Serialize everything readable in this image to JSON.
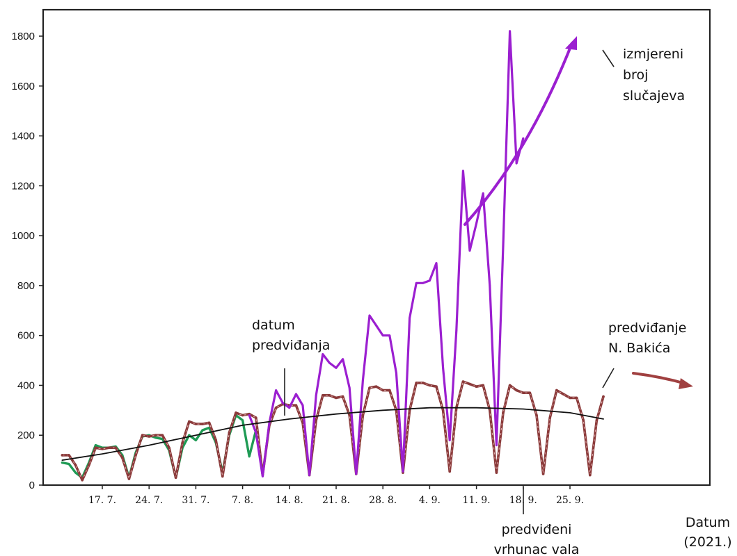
{
  "chart_data": {
    "type": "line",
    "x_unit": "date",
    "xlabel_lines": [
      "Datum",
      "(2021.)"
    ],
    "ylim": [
      0,
      1900
    ],
    "yticks": [
      0,
      200,
      400,
      600,
      800,
      1000,
      1200,
      1400,
      1600,
      1800
    ],
    "xticks": [
      {
        "x": "2021-07-17",
        "label": "17. 7."
      },
      {
        "x": "2021-07-24",
        "label": "24. 7."
      },
      {
        "x": "2021-07-31",
        "label": "31. 7."
      },
      {
        "x": "2021-08-07",
        "label": "7. 8."
      },
      {
        "x": "2021-08-14",
        "label": "14. 8."
      },
      {
        "x": "2021-08-21",
        "label": "21. 8."
      },
      {
        "x": "2021-08-28",
        "label": "28. 8."
      },
      {
        "x": "2021-09-04",
        "label": "4. 9."
      },
      {
        "x": "2021-09-11",
        "label": "11. 9."
      },
      {
        "x": "2021-09-18",
        "label": "18. 9."
      },
      {
        "x": "2021-09-25",
        "label": "25. 9."
      }
    ],
    "series": [
      {
        "name": "izmjereni broj slučajeva",
        "color": "#9b1fd0",
        "points": [
          [
            "2021-08-08",
            280
          ],
          [
            "2021-08-09",
            210
          ],
          [
            "2021-08-10",
            35
          ],
          [
            "2021-08-11",
            250
          ],
          [
            "2021-08-12",
            380
          ],
          [
            "2021-08-13",
            330
          ],
          [
            "2021-08-14",
            310
          ],
          [
            "2021-08-15",
            365
          ],
          [
            "2021-08-16",
            320
          ],
          [
            "2021-08-17",
            40
          ],
          [
            "2021-08-18",
            360
          ],
          [
            "2021-08-19",
            525
          ],
          [
            "2021-08-20",
            490
          ],
          [
            "2021-08-21",
            470
          ],
          [
            "2021-08-22",
            505
          ],
          [
            "2021-08-23",
            390
          ],
          [
            "2021-08-24",
            45
          ],
          [
            "2021-08-25",
            420
          ],
          [
            "2021-08-26",
            680
          ],
          [
            "2021-08-27",
            640
          ],
          [
            "2021-08-28",
            600
          ],
          [
            "2021-08-29",
            600
          ],
          [
            "2021-08-30",
            450
          ],
          [
            "2021-08-31",
            55
          ],
          [
            "2021-09-01",
            670
          ],
          [
            "2021-09-02",
            810
          ],
          [
            "2021-09-03",
            810
          ],
          [
            "2021-09-04",
            820
          ],
          [
            "2021-09-05",
            890
          ],
          [
            "2021-09-06",
            470
          ],
          [
            "2021-09-07",
            180
          ],
          [
            "2021-09-08",
            620
          ],
          [
            "2021-09-09",
            1260
          ],
          [
            "2021-09-10",
            940
          ],
          [
            "2021-09-11",
            1050
          ],
          [
            "2021-09-12",
            1170
          ],
          [
            "2021-09-13",
            800
          ],
          [
            "2021-09-14",
            160
          ],
          [
            "2021-09-15",
            960
          ],
          [
            "2021-09-16",
            1820
          ],
          [
            "2021-09-17",
            1290
          ],
          [
            "2021-09-18",
            1390
          ]
        ]
      },
      {
        "name": "predviđanje N. Bakića",
        "color": "#8b3a3a",
        "points": [
          [
            "2021-07-11",
            120
          ],
          [
            "2021-07-12",
            120
          ],
          [
            "2021-07-13",
            80
          ],
          [
            "2021-07-14",
            20
          ],
          [
            "2021-07-15",
            80
          ],
          [
            "2021-07-16",
            150
          ],
          [
            "2021-07-17",
            145
          ],
          [
            "2021-07-18",
            150
          ],
          [
            "2021-07-19",
            150
          ],
          [
            "2021-07-20",
            110
          ],
          [
            "2021-07-21",
            25
          ],
          [
            "2021-07-22",
            120
          ],
          [
            "2021-07-23",
            200
          ],
          [
            "2021-07-24",
            195
          ],
          [
            "2021-07-25",
            200
          ],
          [
            "2021-07-26",
            200
          ],
          [
            "2021-07-27",
            150
          ],
          [
            "2021-07-28",
            30
          ],
          [
            "2021-07-29",
            170
          ],
          [
            "2021-07-30",
            255
          ],
          [
            "2021-07-31",
            245
          ],
          [
            "2021-08-01",
            245
          ],
          [
            "2021-08-02",
            250
          ],
          [
            "2021-08-03",
            180
          ],
          [
            "2021-08-04",
            35
          ],
          [
            "2021-08-05",
            210
          ],
          [
            "2021-08-06",
            290
          ],
          [
            "2021-08-07",
            280
          ],
          [
            "2021-08-08",
            285
          ],
          [
            "2021-08-09",
            270
          ],
          [
            "2021-08-10",
            40
          ],
          [
            "2021-08-11",
            240
          ],
          [
            "2021-08-12",
            310
          ],
          [
            "2021-08-13",
            325
          ],
          [
            "2021-08-14",
            320
          ],
          [
            "2021-08-15",
            320
          ],
          [
            "2021-08-16",
            250
          ],
          [
            "2021-08-17",
            40
          ],
          [
            "2021-08-18",
            260
          ],
          [
            "2021-08-19",
            360
          ],
          [
            "2021-08-20",
            360
          ],
          [
            "2021-08-21",
            350
          ],
          [
            "2021-08-22",
            355
          ],
          [
            "2021-08-23",
            280
          ],
          [
            "2021-08-24",
            45
          ],
          [
            "2021-08-25",
            280
          ],
          [
            "2021-08-26",
            390
          ],
          [
            "2021-08-27",
            395
          ],
          [
            "2021-08-28",
            380
          ],
          [
            "2021-08-29",
            380
          ],
          [
            "2021-08-30",
            300
          ],
          [
            "2021-08-31",
            50
          ],
          [
            "2021-09-01",
            300
          ],
          [
            "2021-09-02",
            410
          ],
          [
            "2021-09-03",
            410
          ],
          [
            "2021-09-04",
            400
          ],
          [
            "2021-09-05",
            395
          ],
          [
            "2021-09-06",
            300
          ],
          [
            "2021-09-07",
            55
          ],
          [
            "2021-09-08",
            310
          ],
          [
            "2021-09-09",
            415
          ],
          [
            "2021-09-10",
            405
          ],
          [
            "2021-09-11",
            395
          ],
          [
            "2021-09-12",
            400
          ],
          [
            "2021-09-13",
            300
          ],
          [
            "2021-09-14",
            50
          ],
          [
            "2021-09-15",
            290
          ],
          [
            "2021-09-16",
            400
          ],
          [
            "2021-09-17",
            380
          ],
          [
            "2021-09-18",
            370
          ],
          [
            "2021-09-19",
            370
          ],
          [
            "2021-09-20",
            280
          ],
          [
            "2021-09-21",
            45
          ],
          [
            "2021-09-22",
            270
          ],
          [
            "2021-09-23",
            380
          ],
          [
            "2021-09-24",
            365
          ],
          [
            "2021-09-25",
            350
          ],
          [
            "2021-09-26",
            350
          ],
          [
            "2021-09-27",
            260
          ],
          [
            "2021-09-28",
            40
          ],
          [
            "2021-09-29",
            260
          ],
          [
            "2021-09-30",
            355
          ]
        ]
      },
      {
        "color": "#1f9b55",
        "points": [
          [
            "2021-07-11",
            90
          ],
          [
            "2021-07-12",
            85
          ],
          [
            "2021-07-13",
            50
          ],
          [
            "2021-07-14",
            30
          ],
          [
            "2021-07-15",
            90
          ],
          [
            "2021-07-16",
            160
          ],
          [
            "2021-07-17",
            150
          ],
          [
            "2021-07-18",
            150
          ],
          [
            "2021-07-19",
            155
          ],
          [
            "2021-07-20",
            120
          ],
          [
            "2021-07-21",
            30
          ],
          [
            "2021-07-22",
            130
          ],
          [
            "2021-07-23",
            195
          ],
          [
            "2021-07-24",
            200
          ],
          [
            "2021-07-25",
            190
          ],
          [
            "2021-07-26",
            185
          ],
          [
            "2021-07-27",
            140
          ],
          [
            "2021-07-28",
            30
          ],
          [
            "2021-07-29",
            150
          ],
          [
            "2021-07-30",
            200
          ],
          [
            "2021-07-31",
            180
          ],
          [
            "2021-08-01",
            220
          ],
          [
            "2021-08-02",
            230
          ],
          [
            "2021-08-03",
            170
          ],
          [
            "2021-08-04",
            50
          ],
          [
            "2021-08-05",
            200
          ],
          [
            "2021-08-06",
            280
          ],
          [
            "2021-08-07",
            260
          ],
          [
            "2021-08-08",
            115
          ],
          [
            "2021-08-09",
            220
          ]
        ]
      },
      {
        "color": "#111111",
        "points": [
          [
            "2021-07-11",
            100
          ],
          [
            "2021-07-17",
            125
          ],
          [
            "2021-07-24",
            160
          ],
          [
            "2021-07-31",
            200
          ],
          [
            "2021-08-07",
            240
          ],
          [
            "2021-08-14",
            265
          ],
          [
            "2021-08-21",
            285
          ],
          [
            "2021-08-28",
            300
          ],
          [
            "2021-09-04",
            310
          ],
          [
            "2021-09-11",
            310
          ],
          [
            "2021-09-18",
            305
          ],
          [
            "2021-09-25",
            290
          ],
          [
            "2021-09-30",
            265
          ]
        ]
      }
    ],
    "annotations": [
      {
        "lines": [
          "izmjereni",
          "broj",
          "slučajeva"
        ]
      },
      {
        "lines": [
          "datum",
          "predviđanja"
        ]
      },
      {
        "lines": [
          "predviđanje",
          "N. Bakića"
        ]
      },
      {
        "lines": [
          "predviđeni",
          "vrhunac vala"
        ]
      }
    ]
  }
}
